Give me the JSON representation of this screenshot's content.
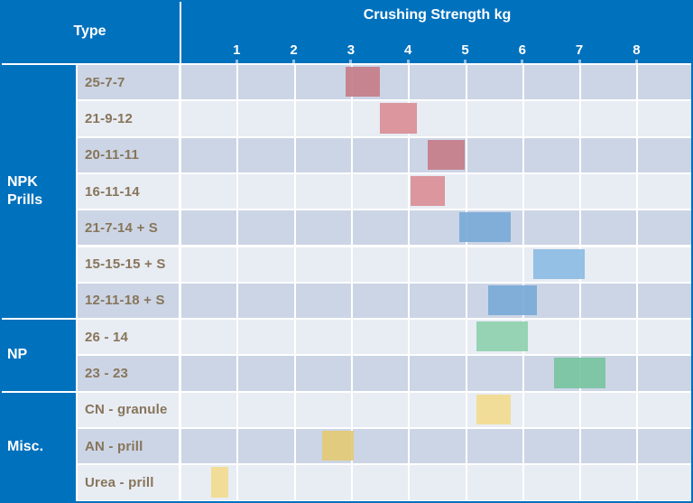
{
  "header": {
    "type_label": "Type",
    "title": "Crushing Strength kg"
  },
  "axis": {
    "tick_labels": [
      "1",
      "2",
      "3",
      "4",
      "5",
      "6",
      "7",
      "8"
    ],
    "min": 0,
    "max": 9,
    "unit": "kg"
  },
  "colors": {
    "header_blue": "#0071bd",
    "row_bg_dark": "#ccd5e5",
    "row_bg_light": "#e8ecf3",
    "grid_line": "#ffffff",
    "row_label_text": "#87755a",
    "group_label_text": "#ffffff",
    "bar_red_dark": "#c57e8b",
    "bar_red_light": "#d98f97",
    "bar_blue_dark": "#7aabd8",
    "bar_blue_light": "#8cbce2",
    "bar_green_dark": "#77c5a0",
    "bar_green_light": "#8ed1ae",
    "bar_yellow_dark": "#e2ca77",
    "bar_yellow_light": "#f1db8f"
  },
  "chart_data": {
    "type": "bar",
    "orientation": "horizontal-range",
    "title": "Crushing Strength kg",
    "xlabel": "Crushing Strength kg",
    "ylabel": "Type",
    "xlim": [
      0,
      9
    ],
    "grid": true,
    "groups": [
      {
        "label": "NPK Prills",
        "row_span": [
          0,
          6
        ]
      },
      {
        "label": "NP",
        "row_span": [
          7,
          8
        ]
      },
      {
        "label": "Misc.",
        "row_span": [
          9,
          11
        ]
      }
    ],
    "rows": [
      {
        "group": "NPK Prills",
        "label": "25-7-7",
        "range_kg": [
          2.9,
          3.5
        ],
        "color": "#c57e8b"
      },
      {
        "group": "NPK Prills",
        "label": "21-9-12",
        "range_kg": [
          3.5,
          4.15
        ],
        "color": "#d98f97"
      },
      {
        "group": "NPK Prills",
        "label": "20-11-11",
        "range_kg": [
          4.35,
          5.0
        ],
        "color": "#c57e8b"
      },
      {
        "group": "NPK Prills",
        "label": "16-11-14",
        "range_kg": [
          4.05,
          4.65
        ],
        "color": "#d98f97"
      },
      {
        "group": "NPK Prills",
        "label": "21-7-14 + S",
        "range_kg": [
          4.9,
          5.8
        ],
        "color": "#7aabd8"
      },
      {
        "group": "NPK Prills",
        "label": "15-15-15 + S",
        "range_kg": [
          6.2,
          7.1
        ],
        "color": "#8cbce2"
      },
      {
        "group": "NPK Prills",
        "label": "12-11-18 + S",
        "range_kg": [
          5.4,
          6.25
        ],
        "color": "#7aabd8"
      },
      {
        "group": "NP",
        "label": "26 - 14",
        "range_kg": [
          5.2,
          6.1
        ],
        "color": "#8ed1ae"
      },
      {
        "group": "NP",
        "label": "23 - 23",
        "range_kg": [
          6.55,
          7.45
        ],
        "color": "#77c5a0"
      },
      {
        "group": "Misc.",
        "label": "CN - granule",
        "range_kg": [
          5.2,
          5.8
        ],
        "color": "#f1db8f"
      },
      {
        "group": "Misc.",
        "label": "AN - prill",
        "range_kg": [
          2.5,
          3.05
        ],
        "color": "#e2ca77"
      },
      {
        "group": "Misc.",
        "label": "Urea - prill",
        "range_kg": [
          0.55,
          0.85
        ],
        "color": "#f1db8f"
      }
    ]
  }
}
